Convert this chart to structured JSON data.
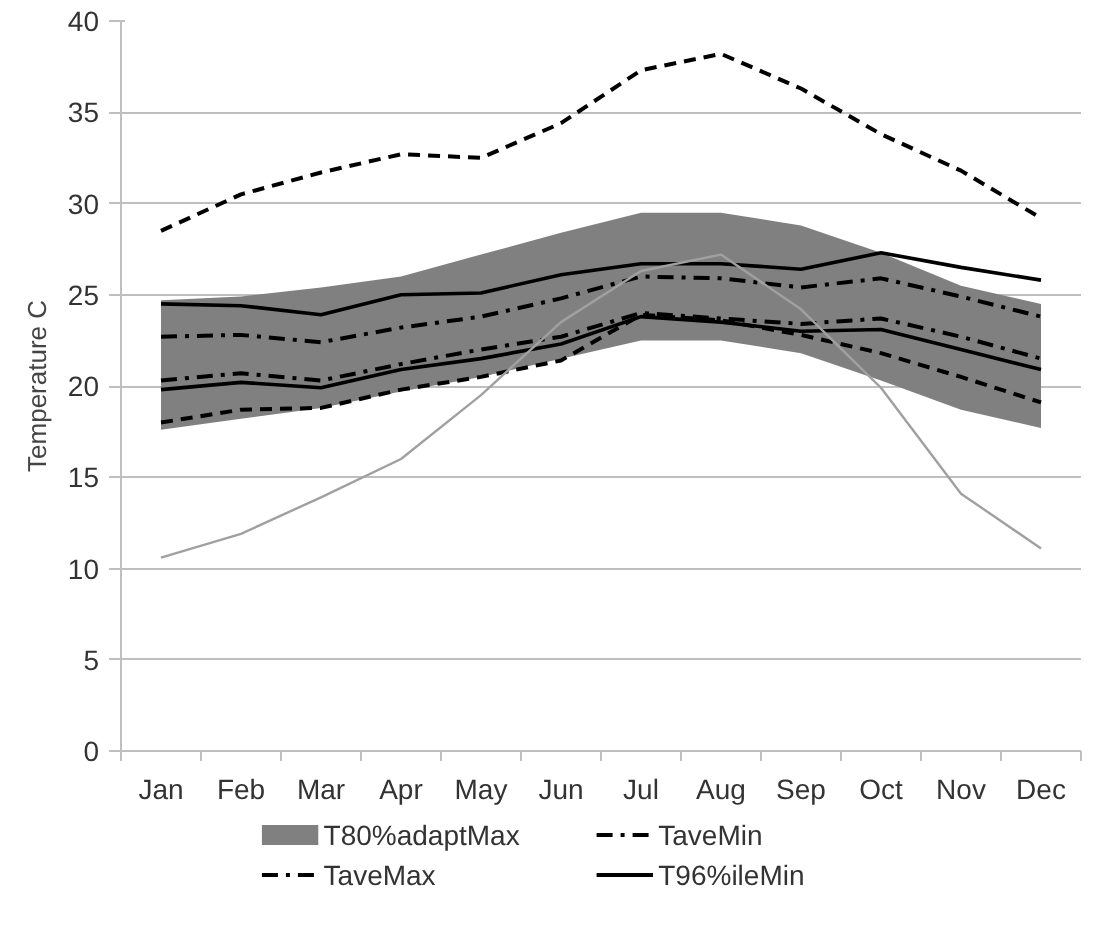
{
  "chart_data": {
    "type": "line",
    "ylabel": "Temperature C",
    "categories": [
      "Jan",
      "Feb",
      "Mar",
      "Apr",
      "May",
      "Jun",
      "Jul",
      "Aug",
      "Sep",
      "Oct",
      "Nov",
      "Dec"
    ],
    "ylim": [
      0,
      40
    ],
    "yticks": [
      0,
      5,
      10,
      15,
      20,
      25,
      30,
      35,
      40
    ],
    "grid": "y",
    "legend": "bottom",
    "series": [
      {
        "name": "T80%adaptMax",
        "type": "area",
        "color": "#808080",
        "values": [
          null,
          null,
          null,
          null,
          null,
          null,
          null,
          null,
          null,
          null,
          null,
          null
        ],
        "upper": [
          24.7,
          24.9,
          25.4,
          26.0,
          27.2,
          28.4,
          29.5,
          29.5,
          28.8,
          27.3,
          25.5,
          24.5
        ],
        "lower": [
          17.6,
          18.2,
          18.8,
          19.7,
          20.5,
          21.5,
          22.5,
          22.5,
          21.8,
          20.3,
          18.7,
          17.7
        ]
      },
      {
        "name": "TaveMin",
        "color": "#000000",
        "line_style": "dashdot",
        "values": [
          20.3,
          20.7,
          20.3,
          21.2,
          22.0,
          22.7,
          24.0,
          23.7,
          23.4,
          23.7,
          22.7,
          21.5
        ]
      },
      {
        "name": "TaveMax",
        "color": "#000000",
        "line_style": "dashdot",
        "values": [
          22.7,
          22.8,
          22.4,
          23.2,
          23.8,
          24.8,
          26.0,
          25.9,
          25.4,
          25.9,
          24.9,
          23.8
        ]
      },
      {
        "name": "T96%ileMin",
        "color": "#000000",
        "line_style": "solid",
        "values": [
          24.5,
          24.4,
          23.9,
          25.0,
          25.1,
          26.1,
          26.7,
          26.7,
          26.4,
          27.3,
          26.5,
          25.8
        ]
      },
      {
        "color": "#000000",
        "line_style": "solid",
        "values": [
          19.8,
          20.2,
          19.9,
          20.9,
          21.5,
          22.3,
          23.8,
          23.5,
          23.0,
          23.1,
          22.0,
          20.9
        ]
      },
      {
        "color": "#000000",
        "line_style": "dashed",
        "values": [
          18.0,
          18.7,
          18.8,
          19.8,
          20.5,
          21.4,
          23.9,
          23.6,
          22.8,
          21.8,
          20.5,
          19.1
        ]
      },
      {
        "color": "#000000",
        "line_style": "dashed",
        "values": [
          28.5,
          30.5,
          31.7,
          32.7,
          32.5,
          34.4,
          37.3,
          38.2,
          36.3,
          33.8,
          31.8,
          29.2
        ]
      },
      {
        "color": "#a0a0a0",
        "line_style": "solid",
        "values": [
          10.6,
          11.9,
          13.9,
          16.0,
          19.5,
          23.5,
          26.3,
          27.2,
          24.2,
          19.9,
          14.1,
          11.1
        ]
      }
    ]
  }
}
